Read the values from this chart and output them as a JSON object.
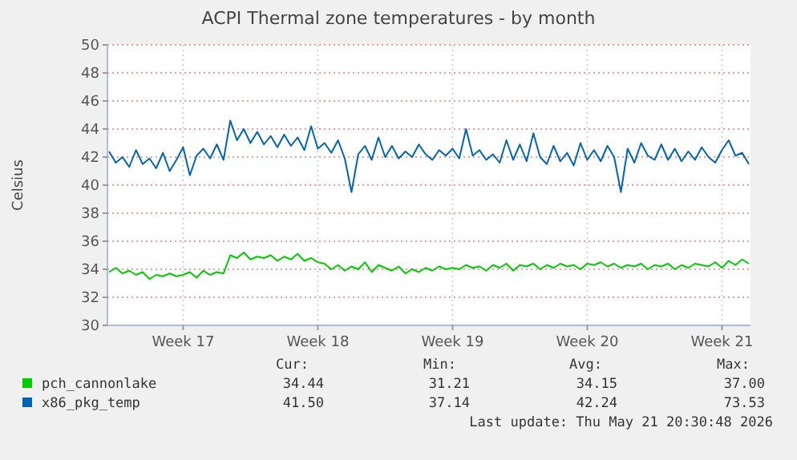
{
  "chart_data": {
    "type": "line",
    "title": "ACPI Thermal zone temperatures - by month",
    "ylabel": "Celsius",
    "categories": [
      null,
      null,
      null,
      null,
      null,
      null,
      null,
      null,
      null,
      null,
      null,
      "Week 17",
      null,
      null,
      null,
      null,
      null,
      null,
      null,
      null,
      null,
      null,
      null,
      null,
      null,
      null,
      null,
      null,
      null,
      null,
      null,
      "Week 18",
      null,
      null,
      null,
      null,
      null,
      null,
      null,
      null,
      null,
      null,
      null,
      null,
      null,
      null,
      null,
      null,
      null,
      null,
      null,
      "Week 19",
      null,
      null,
      null,
      null,
      null,
      null,
      null,
      null,
      null,
      null,
      null,
      null,
      null,
      null,
      null,
      null,
      null,
      null,
      null,
      "Week 20",
      null,
      null,
      null,
      null,
      null,
      null,
      null,
      null,
      null,
      null,
      null,
      null,
      null,
      null,
      null,
      null,
      null,
      null,
      null,
      "Week 21",
      null,
      null,
      null,
      null
    ],
    "ylim": [
      30,
      50
    ],
    "yticks": [
      30,
      32,
      34,
      36,
      38,
      40,
      42,
      44,
      46,
      48,
      50
    ],
    "grid": true,
    "legend": "bottom",
    "series": [
      {
        "name": "pch_cannonlake",
        "color": "#00cc00",
        "values": [
          33.8,
          34.1,
          33.7,
          33.9,
          33.6,
          33.8,
          33.3,
          33.6,
          33.5,
          33.7,
          33.5,
          33.6,
          33.8,
          33.4,
          33.9,
          33.6,
          33.8,
          33.7,
          35.0,
          34.8,
          35.2,
          34.7,
          34.9,
          34.8,
          35.0,
          34.6,
          34.9,
          34.7,
          35.1,
          34.6,
          34.8,
          34.5,
          34.4,
          34.0,
          34.3,
          33.9,
          34.2,
          34.0,
          34.5,
          33.8,
          34.3,
          34.1,
          33.9,
          34.2,
          33.7,
          34.0,
          33.8,
          34.1,
          33.9,
          34.2,
          34.0,
          34.1,
          34.0,
          34.3,
          34.1,
          34.2,
          33.9,
          34.3,
          34.1,
          34.4,
          33.9,
          34.3,
          34.2,
          34.4,
          34.0,
          34.3,
          34.1,
          34.4,
          34.2,
          34.3,
          34.0,
          34.4,
          34.3,
          34.5,
          34.2,
          34.4,
          34.1,
          34.3,
          34.2,
          34.4,
          34.0,
          34.3,
          34.2,
          34.4,
          34.0,
          34.3,
          34.1,
          34.4,
          34.3,
          34.2,
          34.5,
          34.1,
          34.6,
          34.3,
          34.7,
          34.4
        ]
      },
      {
        "name": "x86_pkg_temp",
        "color": "#0066b3",
        "values": [
          42.4,
          41.6,
          42.0,
          41.3,
          42.5,
          41.5,
          41.9,
          41.2,
          42.3,
          41.0,
          41.8,
          42.7,
          40.7,
          42.1,
          42.6,
          41.9,
          42.9,
          41.8,
          44.6,
          43.2,
          44.0,
          43.0,
          43.8,
          42.9,
          43.5,
          42.7,
          43.6,
          42.8,
          43.4,
          42.5,
          44.2,
          42.6,
          43.0,
          42.3,
          43.2,
          41.9,
          39.5,
          42.2,
          42.8,
          41.8,
          43.4,
          42.0,
          42.8,
          41.9,
          42.4,
          42.0,
          42.9,
          42.2,
          41.8,
          42.5,
          42.1,
          42.6,
          41.9,
          44.0,
          42.1,
          42.5,
          41.8,
          42.2,
          41.6,
          43.2,
          41.8,
          42.9,
          41.7,
          43.7,
          42.0,
          41.5,
          42.8,
          41.7,
          42.3,
          41.4,
          43.0,
          41.8,
          42.5,
          41.7,
          42.8,
          42.0,
          39.5,
          42.6,
          41.6,
          43.0,
          42.1,
          41.8,
          42.9,
          41.8,
          42.6,
          41.7,
          42.4,
          41.8,
          42.7,
          42.0,
          41.6,
          42.5,
          43.2,
          42.1,
          42.3,
          41.5
        ]
      }
    ],
    "annotations": [
      "Cur:",
      "Min:",
      "Avg:",
      "Max:",
      "34.44",
      "31.21",
      "34.15",
      "37.00",
      "41.50",
      "37.14",
      "42.24",
      "73.53",
      "Last update: Thu May 21 20:30:48 2026"
    ]
  }
}
